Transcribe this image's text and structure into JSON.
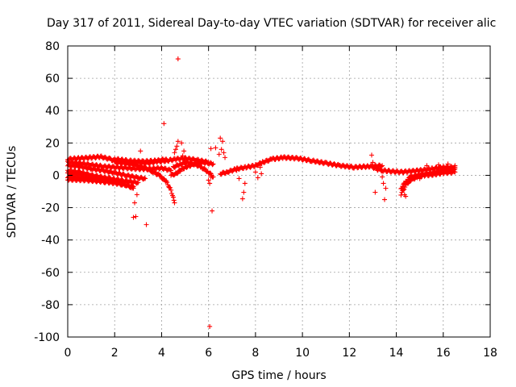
{
  "chart_data": {
    "type": "scatter",
    "title": "Day 317 of 2011, Sidereal Day-to-day VTEC variation (SDTVAR) for receiver alic",
    "xlabel": "GPS time / hours",
    "ylabel": "SDTVAR / TECUs",
    "xlim": [
      0,
      18
    ],
    "ylim": [
      -100,
      80
    ],
    "xticks": [
      "0",
      "2",
      "4",
      "6",
      "8",
      "10",
      "12",
      "14",
      "16",
      "18"
    ],
    "yticks": [
      "80",
      "60",
      "40",
      "20",
      "0",
      "-20",
      "-40",
      "-60",
      "-80",
      "-100"
    ],
    "xtick_values": [
      0,
      2,
      4,
      6,
      8,
      10,
      12,
      14,
      16,
      18
    ],
    "ytick_values": [
      80,
      60,
      40,
      20,
      0,
      -20,
      -40,
      -60,
      -80,
      -100
    ],
    "grid": true,
    "marker": "+",
    "color": "#ff0000",
    "series": [
      {
        "name": "SDTVAR",
        "tracks": [
          [
            [
              0,
              10
            ],
            [
              0.5,
              10.5
            ],
            [
              1,
              11
            ],
            [
              1.4,
              11.5
            ],
            [
              1.8,
              10
            ],
            [
              2.2,
              8
            ],
            [
              2.6,
              7
            ],
            [
              3,
              8
            ],
            [
              3.4,
              7.5
            ],
            [
              3.8,
              8.5
            ],
            [
              4.2,
              9
            ],
            [
              4.6,
              10
            ],
            [
              5,
              10.5
            ],
            [
              5.5,
              9.5
            ],
            [
              6,
              8
            ]
          ],
          [
            [
              0,
              8
            ],
            [
              0.5,
              7.5
            ],
            [
              1,
              6.5
            ],
            [
              1.5,
              5.5
            ],
            [
              2,
              5
            ],
            [
              2.5,
              4.5
            ],
            [
              3,
              4
            ],
            [
              3.5,
              4
            ],
            [
              4,
              4.5
            ],
            [
              4.4,
              3
            ]
          ],
          [
            [
              0,
              6
            ],
            [
              0.5,
              5.5
            ],
            [
              1,
              4
            ],
            [
              1.5,
              3
            ],
            [
              2,
              1.5
            ],
            [
              2.5,
              0
            ],
            [
              3,
              -1.5
            ],
            [
              3.3,
              -2
            ]
          ],
          [
            [
              0,
              3
            ],
            [
              0.5,
              2
            ],
            [
              1,
              0
            ],
            [
              1.5,
              -2
            ],
            [
              2,
              -4
            ],
            [
              2.5,
              -6
            ],
            [
              2.8,
              -8
            ]
          ],
          [
            [
              0,
              1
            ],
            [
              0.6,
              0.5
            ],
            [
              1.2,
              -0.5
            ],
            [
              1.8,
              -2
            ],
            [
              2.4,
              -3.5
            ],
            [
              3,
              -4.5
            ]
          ],
          [
            [
              0,
              -1
            ],
            [
              0.7,
              -1.5
            ],
            [
              1.4,
              -2
            ],
            [
              2.1,
              -3
            ],
            [
              2.6,
              -4
            ]
          ],
          [
            [
              0,
              -2.5
            ],
            [
              0.8,
              -3
            ],
            [
              1.6,
              -4
            ],
            [
              2.3,
              -5.5
            ],
            [
              2.8,
              -7
            ]
          ],
          [
            [
              2,
              8
            ],
            [
              2.5,
              7.5
            ],
            [
              3,
              6
            ],
            [
              3.3,
              4.5
            ],
            [
              3.6,
              2.5
            ],
            [
              3.9,
              0
            ],
            [
              4.2,
              -4
            ],
            [
              4.4,
              -9
            ],
            [
              4.5,
              -14
            ],
            [
              4.55,
              -17
            ]
          ],
          [
            [
              2,
              10
            ],
            [
              2.6,
              9
            ],
            [
              3.2,
              8.5
            ],
            [
              3.8,
              9
            ],
            [
              4.2,
              10
            ]
          ],
          [
            [
              4.5,
              5
            ],
            [
              4.8,
              7
            ],
            [
              5.1,
              8
            ],
            [
              5.4,
              7
            ],
            [
              5.7,
              5
            ],
            [
              6,
              2
            ],
            [
              6.2,
              -1
            ]
          ],
          [
            [
              4.4,
              0
            ],
            [
              4.6,
              1
            ],
            [
              4.8,
              3
            ],
            [
              5,
              5
            ],
            [
              5.2,
              6
            ],
            [
              5.5,
              7.5
            ],
            [
              5.8,
              8
            ],
            [
              6.2,
              7
            ]
          ],
          [
            [
              6.5,
              1
            ],
            [
              6.8,
              2
            ],
            [
              7.2,
              4
            ],
            [
              7.6,
              5
            ],
            [
              8,
              6
            ],
            [
              8.3,
              8
            ],
            [
              8.7,
              10
            ],
            [
              9.2,
              11
            ],
            [
              9.8,
              10.5
            ],
            [
              10.4,
              9
            ],
            [
              11,
              7.5
            ],
            [
              11.6,
              6
            ],
            [
              12.2,
              5
            ],
            [
              12.8,
              5.5
            ],
            [
              13.4,
              6
            ]
          ],
          [
            [
              13,
              5
            ],
            [
              13.4,
              3
            ],
            [
              13.8,
              2.5
            ],
            [
              14.2,
              2
            ],
            [
              14.6,
              2.5
            ],
            [
              15,
              3
            ],
            [
              15.5,
              4
            ],
            [
              16,
              5
            ],
            [
              16.5,
              5
            ]
          ],
          [
            [
              14.2,
              -12
            ],
            [
              14.4,
              -6
            ],
            [
              14.6,
              -3
            ],
            [
              14.9,
              -1
            ],
            [
              15.2,
              0
            ],
            [
              15.6,
              0.5
            ],
            [
              16,
              1.5
            ],
            [
              16.5,
              2
            ]
          ],
          [
            [
              14.2,
              -8
            ],
            [
              14.4,
              -4
            ],
            [
              14.6,
              -1
            ],
            [
              15,
              0.5
            ],
            [
              15.5,
              1.5
            ],
            [
              16,
              3
            ],
            [
              16.5,
              4
            ]
          ]
        ],
        "outliers": [
          [
            4.7,
            72
          ],
          [
            4.1,
            32
          ],
          [
            3.1,
            15
          ],
          [
            3.35,
            -30.5
          ],
          [
            2.8,
            -26
          ],
          [
            2.9,
            -25.5
          ],
          [
            2.85,
            -17
          ],
          [
            2.95,
            -12
          ],
          [
            2.75,
            -8
          ],
          [
            4.7,
            21
          ],
          [
            4.85,
            20
          ],
          [
            4.6,
            16
          ],
          [
            4.9,
            12
          ],
          [
            4.55,
            14
          ],
          [
            4.65,
            18
          ],
          [
            4.95,
            15
          ],
          [
            5.0,
            9
          ],
          [
            6.15,
            -22
          ],
          [
            6.05,
            -93.5
          ],
          [
            6.1,
            16.5
          ],
          [
            6.3,
            17
          ],
          [
            6.5,
            23
          ],
          [
            6.6,
            21
          ],
          [
            6.55,
            16
          ],
          [
            6.45,
            13
          ],
          [
            6.7,
            11
          ],
          [
            6.65,
            14
          ],
          [
            6.0,
            -3
          ],
          [
            6.05,
            -5
          ],
          [
            6.1,
            -1
          ],
          [
            7.45,
            -14.5
          ],
          [
            7.5,
            -10.5
          ],
          [
            7.3,
            -2
          ],
          [
            7.55,
            -5
          ],
          [
            7.2,
            3
          ],
          [
            8.1,
            -1.5
          ],
          [
            8.0,
            2
          ],
          [
            8.2,
            5
          ],
          [
            8.25,
            1
          ],
          [
            12.95,
            12.5
          ],
          [
            13.0,
            8
          ],
          [
            13.1,
            -10.5
          ],
          [
            13.5,
            -15
          ],
          [
            13.45,
            -5
          ],
          [
            13.55,
            -8
          ],
          [
            13.4,
            -1
          ],
          [
            13.2,
            3
          ],
          [
            14.35,
            -12
          ],
          [
            14.4,
            -13
          ],
          [
            15.0,
            -2
          ],
          [
            15.3,
            6
          ],
          [
            15.8,
            6.5
          ],
          [
            16.2,
            7
          ],
          [
            16.5,
            6
          ]
        ]
      }
    ]
  }
}
